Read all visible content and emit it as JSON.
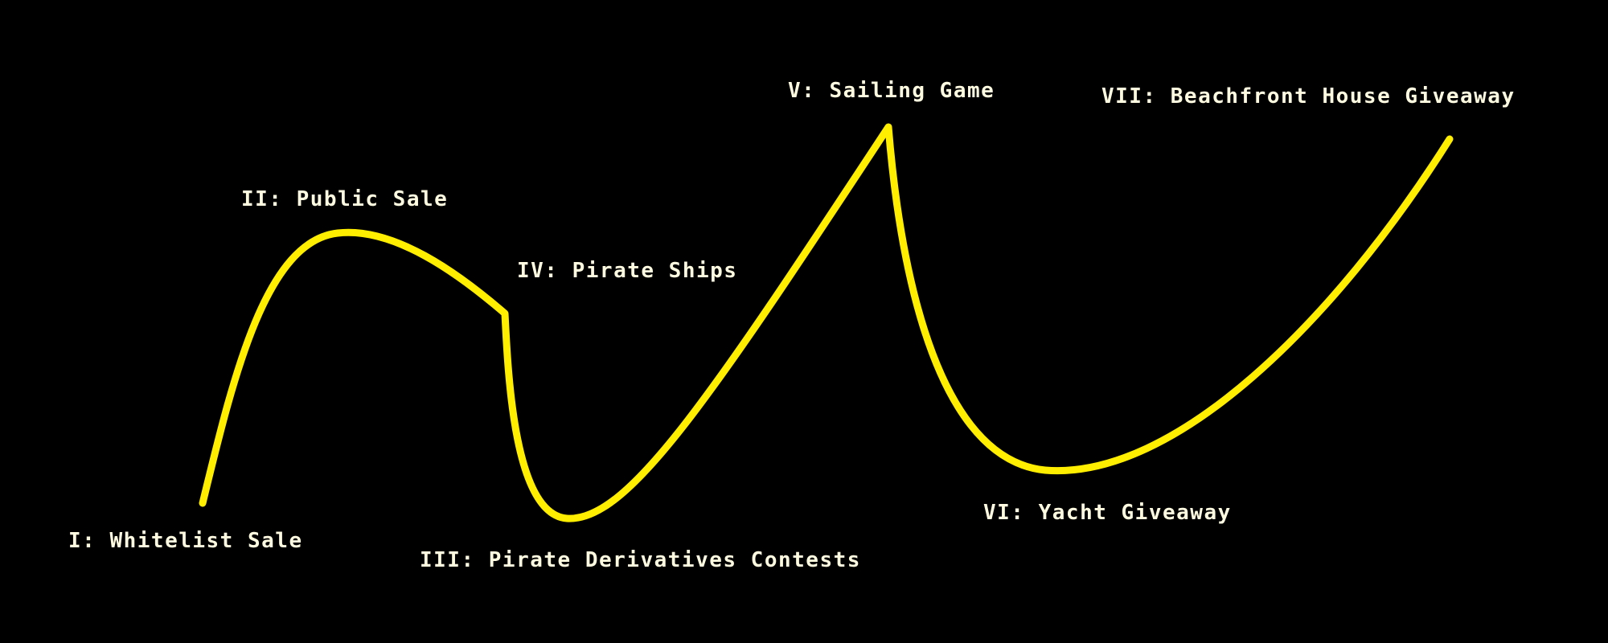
{
  "roadmap": {
    "line_color": "#ffee00",
    "label_color": "#fffbe0",
    "background": "#000000",
    "phases": [
      {
        "label": "I: Whitelist Sale"
      },
      {
        "label": "II: Public Sale"
      },
      {
        "label": "III: Pirate Derivatives Contests"
      },
      {
        "label": "IV: Pirate Ships"
      },
      {
        "label": "V: Sailing Game"
      },
      {
        "label": "VI: Yacht Giveaway"
      },
      {
        "label": "VII: Beachfront House Giveaway"
      }
    ]
  }
}
